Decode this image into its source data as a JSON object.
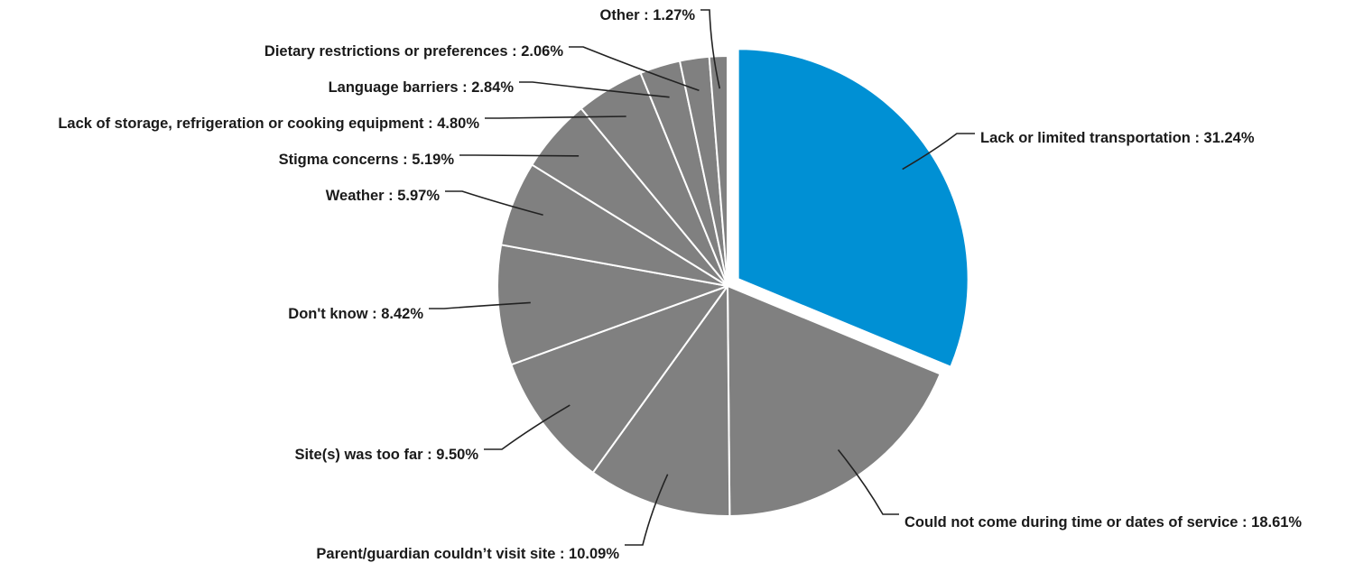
{
  "chart_data": {
    "type": "pie",
    "title": "",
    "slices": [
      {
        "label": "Lack or limited transportation",
        "value": 31.24,
        "value_label": "31.24%",
        "color": "#0090d4",
        "exploded": true
      },
      {
        "label": "Could not come during time or dates of service",
        "value": 18.61,
        "value_label": "18.61%",
        "color": "#808080"
      },
      {
        "label": "Parent/guardian couldn’t visit site",
        "value": 10.09,
        "value_label": "10.09%",
        "color": "#808080"
      },
      {
        "label": "Site(s) was too far",
        "value": 9.5,
        "value_label": "9.50%",
        "color": "#808080"
      },
      {
        "label": "Don't know",
        "value": 8.42,
        "value_label": "8.42%",
        "color": "#808080"
      },
      {
        "label": "Weather",
        "value": 5.97,
        "value_label": "5.97%",
        "color": "#808080"
      },
      {
        "label": "Stigma concerns",
        "value": 5.19,
        "value_label": "5.19%",
        "color": "#808080"
      },
      {
        "label": "Lack of storage, refrigeration or cooking equipment",
        "value": 4.8,
        "value_label": "4.80%",
        "color": "#808080"
      },
      {
        "label": "Language barriers",
        "value": 2.84,
        "value_label": "2.84%",
        "color": "#808080"
      },
      {
        "label": "Dietary restrictions or preferences",
        "value": 2.06,
        "value_label": "2.06%",
        "color": "#808080"
      },
      {
        "label": "Other",
        "value": 1.27,
        "value_label": "1.27%",
        "color": "#808080"
      }
    ]
  }
}
